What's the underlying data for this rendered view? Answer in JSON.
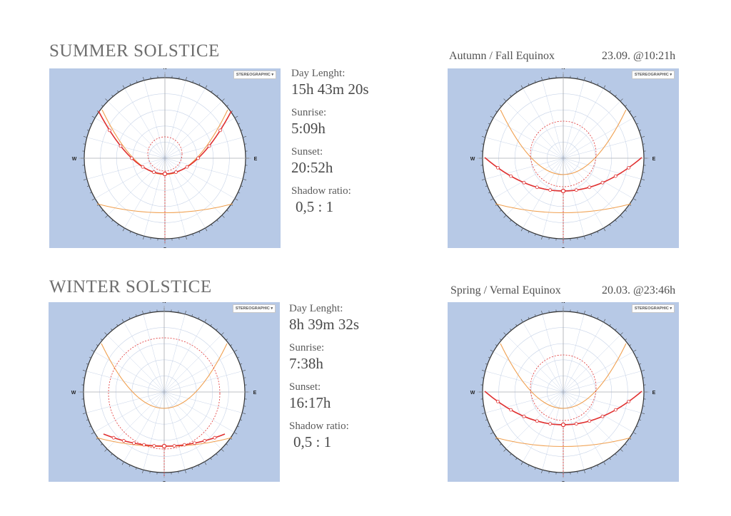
{
  "summer": {
    "title": "SUMMER SOLSTICE",
    "button": "STEREOGRAPHIC",
    "day_length_label": "Day Lenght:",
    "day_length": "15h 43m 20s",
    "sunrise_label": "Sunrise:",
    "sunrise": "5:09h",
    "sunset_label": "Sunset:",
    "sunset": "20:52h",
    "shadow_label": "Shadow ratio:",
    "shadow": "0,5 : 1"
  },
  "winter": {
    "title": "WINTER SOLSTICE",
    "button": "STEREOGRAPHIC",
    "day_length_label": "Day Lenght:",
    "day_length": "8h 39m 32s",
    "sunrise_label": "Sunrise:",
    "sunrise": "7:38h",
    "sunset_label": "Sunset:",
    "sunset": "16:17h",
    "shadow_label": "Shadow ratio:",
    "shadow": "0,5 : 1"
  },
  "autumn": {
    "title": "Autumn / Fall Equinox",
    "stamp": "23.09. @10:21h",
    "button": "STEREOGRAPHIC"
  },
  "spring": {
    "title": "Spring / Vernal Equinox",
    "stamp": "20.03. @23:46h",
    "button": "STEREOGRAPHIC"
  },
  "compass": {
    "n": "N",
    "s": "S",
    "e": "E",
    "w": "W"
  },
  "colors": {
    "panel": "#b7c9e6",
    "sun_path": "#e03030",
    "seasonal_path": "#f0a050",
    "grid": "#c8d4e8",
    "dial": "#ffffff"
  }
}
